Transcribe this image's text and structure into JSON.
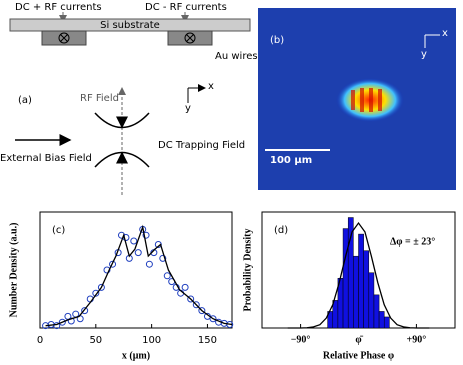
{
  "diagram": {
    "panel": "(a)",
    "top_left": "DC + RF currents",
    "top_right": "DC - RF currents",
    "substrate": "Si substrate",
    "wires": "Au wires",
    "rf_field": "RF Field",
    "bias": "External Bias Field",
    "trap": "DC Trapping Field",
    "axis_x": "x",
    "axis_y": "y"
  },
  "image": {
    "panel": "(b)",
    "scale": "100 μm",
    "axis_x": "x",
    "axis_y": "y"
  },
  "chart_data": [
    {
      "type": "scatter",
      "label": "(c)",
      "xlabel": "x (μm)",
      "ylabel": "Number Density (a.u.)",
      "xlim": [
        0,
        172
      ],
      "ylim": [
        0,
        1
      ],
      "xticks": [
        0,
        50,
        100,
        150
      ],
      "series": [
        {
          "style": "markers",
          "color": "#1f3fbf",
          "x": [
            5,
            10,
            15,
            20,
            25,
            28,
            32,
            36,
            40,
            45,
            50,
            55,
            60,
            65,
            70,
            73,
            77,
            80,
            84,
            88,
            92,
            95,
            98,
            102,
            106,
            110,
            114,
            118,
            122,
            126,
            130,
            135,
            140,
            145,
            150,
            155,
            160,
            165,
            170
          ],
          "values": [
            0.02,
            0.03,
            0.02,
            0.05,
            0.1,
            0.06,
            0.12,
            0.08,
            0.15,
            0.25,
            0.3,
            0.35,
            0.5,
            0.55,
            0.65,
            0.8,
            0.78,
            0.6,
            0.75,
            0.65,
            0.85,
            0.8,
            0.55,
            0.65,
            0.72,
            0.6,
            0.45,
            0.4,
            0.35,
            0.3,
            0.35,
            0.25,
            0.2,
            0.15,
            0.1,
            0.08,
            0.05,
            0.04,
            0.03
          ]
        },
        {
          "style": "line",
          "color": "#000000",
          "x": [
            5,
            15,
            25,
            35,
            45,
            55,
            62,
            68,
            75,
            80,
            85,
            92,
            97,
            103,
            108,
            115,
            125,
            135,
            145,
            155,
            165,
            172
          ],
          "values": [
            0.02,
            0.03,
            0.07,
            0.1,
            0.22,
            0.35,
            0.5,
            0.62,
            0.8,
            0.62,
            0.68,
            0.87,
            0.62,
            0.68,
            0.72,
            0.5,
            0.33,
            0.25,
            0.15,
            0.08,
            0.04,
            0.03
          ]
        }
      ]
    },
    {
      "type": "histogram",
      "label": "(d)",
      "annotation": "Δφ = ± 23°",
      "xlabel": "Relative Phase φ",
      "ylabel": "Probability Density",
      "xlim": [
        -150,
        150
      ],
      "ylim": [
        0,
        1.05
      ],
      "xticks": [
        {
          "value": -90,
          "label": "−90°"
        },
        {
          "value": 0,
          "label": "φ̄"
        },
        {
          "value": 90,
          "label": "+90°"
        }
      ],
      "color": "#1010e0",
      "bins": [
        -48,
        -40,
        -32,
        -24,
        -16,
        -8,
        0,
        8,
        16,
        24,
        32,
        40,
        48
      ],
      "counts": [
        0.15,
        0.25,
        0.45,
        0.9,
        1.0,
        0.65,
        0.85,
        0.7,
        0.5,
        0.3,
        0.15,
        0.1
      ],
      "curve": {
        "color": "#000000",
        "x": [
          -110,
          -100,
          -90,
          -80,
          -70,
          -60,
          -50,
          -40,
          -30,
          -20,
          -10,
          0,
          10,
          20,
          30,
          40,
          50,
          60,
          70,
          80,
          90,
          100,
          110
        ],
        "values": [
          0,
          0,
          0,
          0.002,
          0.01,
          0.03,
          0.09,
          0.21,
          0.41,
          0.65,
          0.87,
          0.95,
          0.87,
          0.65,
          0.41,
          0.21,
          0.09,
          0.03,
          0.01,
          0.002,
          0,
          0,
          0
        ]
      }
    }
  ]
}
